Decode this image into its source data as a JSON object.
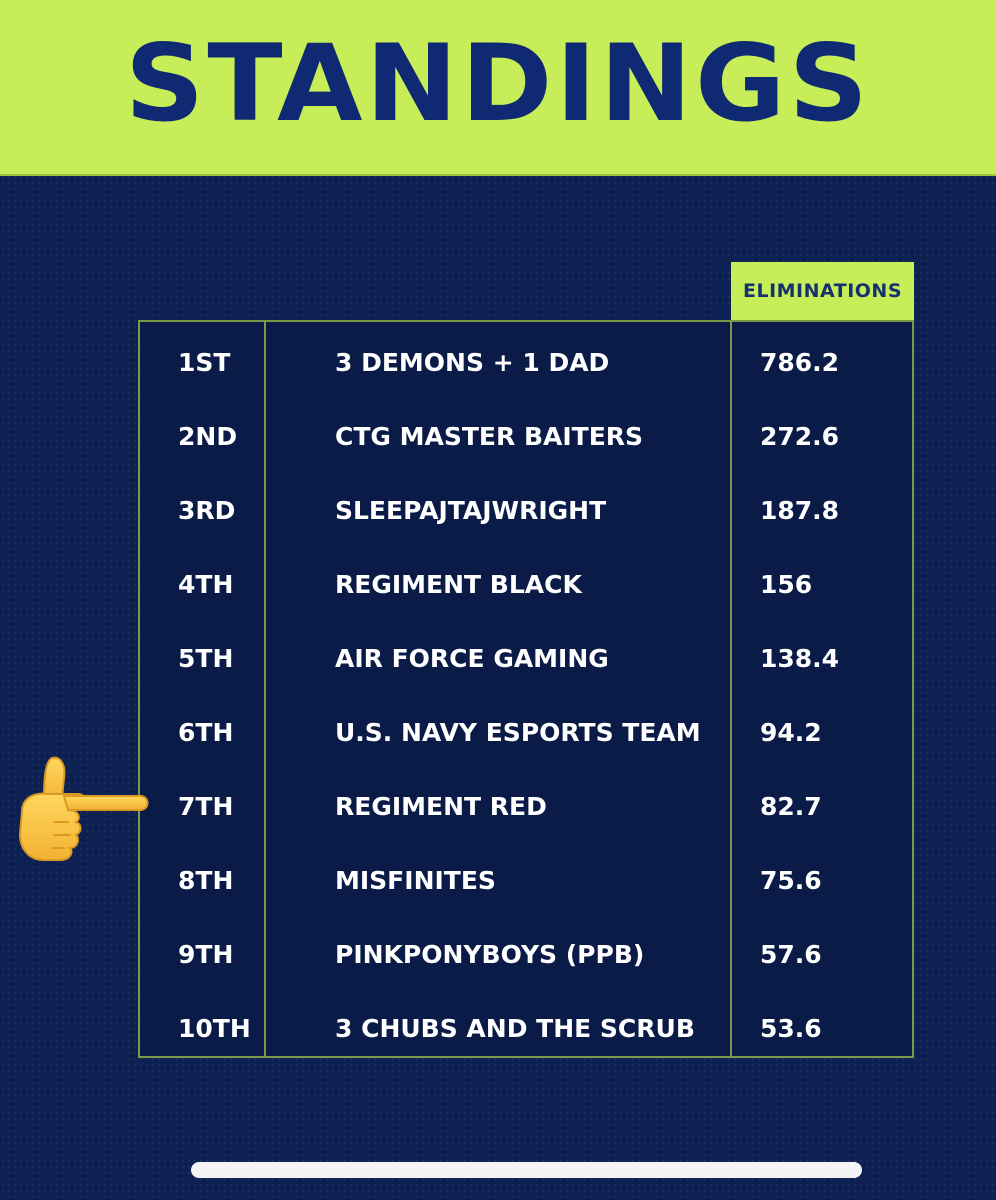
{
  "header": {
    "title": "STANDINGS"
  },
  "table": {
    "column_header": "ELIMINATIONS",
    "rows": [
      {
        "rank": "1ST",
        "team": "3 DEMONS + 1 DAD",
        "eliminations": "786.2"
      },
      {
        "rank": "2ND",
        "team": "CTG MASTER BAITERS",
        "eliminations": "272.6"
      },
      {
        "rank": "3RD",
        "team": "SLEEPAJTAJWRIGHT",
        "eliminations": "187.8"
      },
      {
        "rank": "4TH",
        "team": "REGIMENT BLACK",
        "eliminations": "156"
      },
      {
        "rank": "5TH",
        "team": "AIR FORCE GAMING",
        "eliminations": "138.4"
      },
      {
        "rank": "6TH",
        "team": "U.S. NAVY ESPORTS TEAM",
        "eliminations": "94.2"
      },
      {
        "rank": "7TH",
        "team": "REGIMENT RED",
        "eliminations": "82.7"
      },
      {
        "rank": "8TH",
        "team": "MISFINITES",
        "eliminations": "75.6"
      },
      {
        "rank": "9TH",
        "team": "PINKPONYBOYS (PPB)",
        "eliminations": "57.6"
      },
      {
        "rank": "10TH",
        "team": "3 CHUBS AND THE SCRUB",
        "eliminations": "53.6"
      }
    ]
  },
  "annotation": {
    "icon": "pointing-hand-emoji-icon",
    "highlighted_rank": "7TH"
  },
  "colors": {
    "banner": "#c7ee58",
    "background": "#0c2052",
    "title": "#0f2a73",
    "table_border": "#7a9a4a"
  }
}
